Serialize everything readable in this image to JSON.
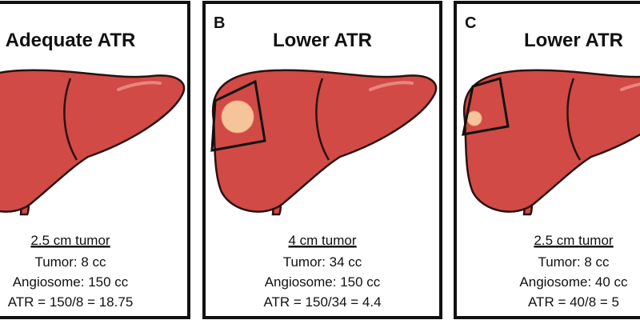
{
  "panels": [
    {
      "title": "Adequate ATR",
      "tumor_size": "2.5 cm tumor",
      "tumor_volume": "Tumor: 8 cc",
      "angiosome": "Angiosome: 150 cc",
      "atr": "ATR = 150/8 = 18.75"
    },
    {
      "letter": "B",
      "title": "Lower ATR",
      "tumor_size": "4 cm tumor",
      "tumor_volume": "Tumor: 34 cc",
      "angiosome": "Angiosome: 150 cc",
      "atr": "ATR = 150/34 = 4.4"
    },
    {
      "letter": "C",
      "title": "Lower ATR",
      "tumor_size": "2.5 cm tumor",
      "tumor_volume": "Tumor: 8 cc",
      "angiosome": "Angiosome: 40 cc",
      "atr": "ATR = 40/8 = 5"
    }
  ]
}
